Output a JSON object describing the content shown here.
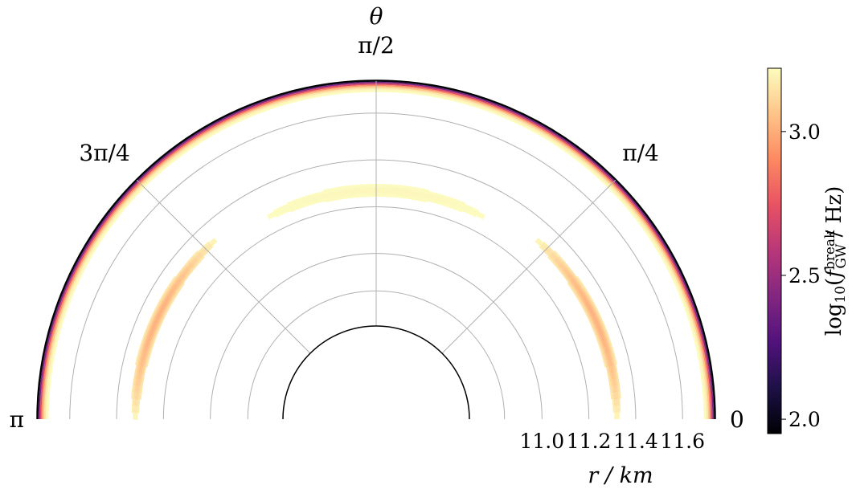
{
  "chart_data": {
    "type": "polar-heatmap",
    "title": "",
    "theta_axis": {
      "label": "θ",
      "range": [
        0,
        3.14159
      ],
      "tick_values": [
        0,
        0.7854,
        1.5708,
        2.3562,
        3.14159
      ],
      "tick_labels": [
        "0",
        "π/4",
        "π/2",
        "3π/4",
        "π"
      ]
    },
    "r_axis": {
      "label": "r / km",
      "range": [
        10.69,
        11.74
      ],
      "ticks": [
        11.0,
        11.2,
        11.4,
        11.6
      ],
      "tick_labels": [
        "11.0",
        "11.2",
        "11.4",
        "11.6"
      ],
      "gridlines": [
        10.84,
        11.0,
        11.2,
        11.4,
        11.6
      ]
    },
    "colorbar": {
      "label": "log10(f_GW^break / Hz)",
      "label_parts": {
        "func": "log",
        "func_sub": "10",
        "open": "(",
        "var": "f",
        "sup": "break",
        "sub": "GW",
        "unit": " / Hz)"
      },
      "range": [
        1.95,
        3.22
      ],
      "ticks": [
        2.0,
        2.5,
        3.0
      ],
      "tick_labels": [
        "2.0",
        "2.5",
        "3.0"
      ],
      "colormap": "magma",
      "stops": [
        "#000004",
        "#1d1147",
        "#51127c",
        "#822681",
        "#b73779",
        "#e75263",
        "#fc8961",
        "#fec488",
        "#fcfdbf"
      ]
    },
    "grid": true,
    "features": [
      {
        "name": "outer edge band",
        "theta_range": [
          0,
          3.14159
        ],
        "r_range": [
          11.69,
          11.74
        ],
        "log10_f_peak": 2.0
      },
      {
        "name": "arc right",
        "theta_range": [
          0,
          0.84
        ],
        "r_center": 11.32,
        "r_width": 0.055,
        "log10_f_peak": 3.0
      },
      {
        "name": "arc top",
        "theta_range": [
          1.08,
          2.06
        ],
        "r_center": 11.27,
        "r_width": 0.055,
        "log10_f_peak": 3.2
      },
      {
        "name": "arc left",
        "theta_range": [
          2.3,
          3.14159
        ],
        "r_center": 11.32,
        "r_width": 0.055,
        "log10_f_peak": 3.0
      }
    ]
  }
}
